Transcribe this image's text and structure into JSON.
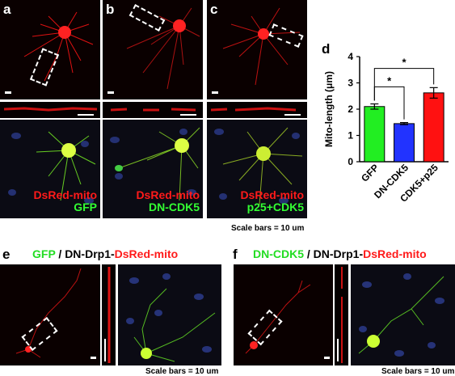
{
  "panels": {
    "a": {
      "label": "a",
      "line1": "DsRed-mito",
      "line2": "GFP"
    },
    "b": {
      "label": "b",
      "line1": "DsRed-mito",
      "line2": "DN-CDK5"
    },
    "c": {
      "label": "c",
      "line1": "DsRed-mito",
      "line2": "p25+CDK5"
    },
    "d": {
      "label": "d"
    },
    "e": {
      "label": "e"
    },
    "f": {
      "label": "f"
    }
  },
  "scale_caption_top": "Scale bars = 10 um",
  "scale_caption_e": "Scale bars = 10 um",
  "scale_caption_f": "Scale bars = 10 um",
  "title_e": {
    "green": "GFP",
    "sep": " / DN-Drp1-",
    "red": "DsRed-mito"
  },
  "title_f": {
    "green": "DN-CDK5",
    "sep": " / DN-Drp1-",
    "red": "DsRed-mito"
  },
  "chart_data": {
    "type": "bar",
    "categories": [
      "GFP",
      "DN-CDK5",
      "CDK5+p25"
    ],
    "values": [
      2.1,
      1.45,
      2.62
    ],
    "errors": [
      0.1,
      0.04,
      0.2
    ],
    "colors": [
      "#22ee22",
      "#2233ff",
      "#ff1111"
    ],
    "ylabel": "Mito-length (μm)",
    "ylim": [
      0,
      4
    ],
    "yticks": [
      "0",
      "1",
      "2",
      "3",
      "4"
    ],
    "significance": [
      {
        "from": 0,
        "to": 2,
        "label": "*"
      },
      {
        "from": 0,
        "to": 1,
        "label": "*"
      }
    ]
  }
}
